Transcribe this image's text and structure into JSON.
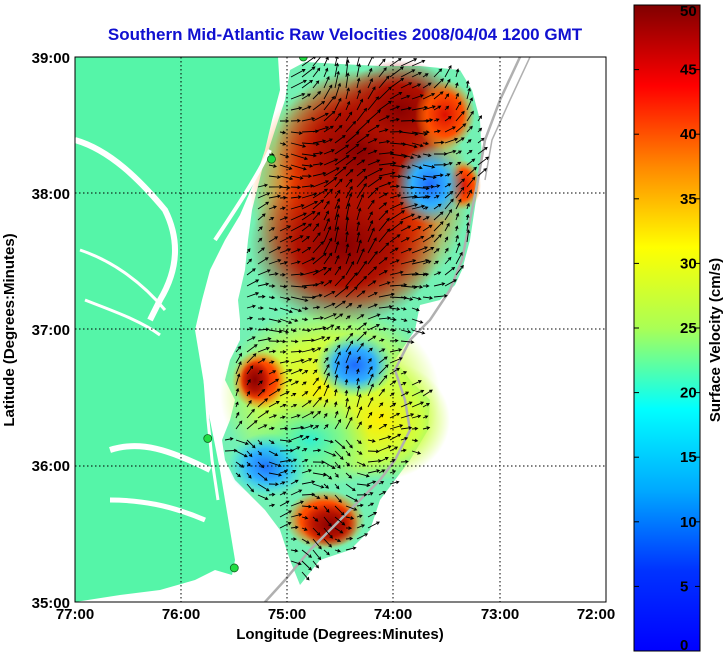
{
  "chart_data": {
    "type": "heatmap",
    "title": "Southern Mid-Atlantic Raw Velocities 2008/04/04 1200 GMT",
    "xlabel": "Longitude (Degrees:Minutes)",
    "ylabel": "Latitude (Degrees:Minutes)",
    "xlim": [
      -77,
      -72
    ],
    "ylim": [
      35,
      39
    ],
    "x_ticks": [
      -77,
      -76,
      -75,
      -74,
      -73,
      -72
    ],
    "x_tick_labels": [
      "77:00",
      "76:00",
      "75:00",
      "74:00",
      "73:00",
      "72:00"
    ],
    "y_ticks": [
      35,
      36,
      37,
      38,
      39
    ],
    "y_tick_labels": [
      "35:00",
      "36:00",
      "37:00",
      "38:00",
      "39:00"
    ],
    "grid": true,
    "colorbar": {
      "label": "Surface Velocity (cm/s)",
      "range": [
        0,
        50
      ],
      "ticks": [
        0,
        5,
        10,
        15,
        20,
        25,
        30,
        35,
        40,
        45,
        50
      ],
      "tick_labels": [
        "0",
        "5",
        "10",
        "15",
        "20",
        "25",
        "30",
        "35",
        "40",
        "45",
        "50"
      ],
      "colormap": "jet"
    },
    "land_color": "#55f5a8",
    "velocity_features": [
      {
        "lon": -74.5,
        "lat": 37.6,
        "speed": 48
      },
      {
        "lon": -74.3,
        "lat": 38.2,
        "speed": 45
      },
      {
        "lon": -74.2,
        "lat": 38.8,
        "speed": 42
      },
      {
        "lon": -73.6,
        "lat": 38.9,
        "speed": 38
      },
      {
        "lon": -73.35,
        "lat": 38.3,
        "speed": 45
      },
      {
        "lon": -73.6,
        "lat": 38.0,
        "speed": 8
      },
      {
        "lon": -74.6,
        "lat": 36.75,
        "speed": 8
      },
      {
        "lon": -75.2,
        "lat": 36.1,
        "speed": 7
      },
      {
        "lon": -75.3,
        "lat": 36.75,
        "speed": 47
      },
      {
        "lon": -74.7,
        "lat": 35.55,
        "speed": 46
      },
      {
        "lon": -74.2,
        "lat": 37.1,
        "speed": 24
      },
      {
        "lon": -73.8,
        "lat": 36.3,
        "speed": 22
      },
      {
        "lon": -74.9,
        "lat": 35.8,
        "speed": 18
      }
    ],
    "stations": [
      {
        "lon": -74.85,
        "lat": 39.0
      },
      {
        "lon": -75.15,
        "lat": 38.25
      },
      {
        "lon": -75.75,
        "lat": 36.2
      },
      {
        "lon": -75.5,
        "lat": 35.25
      }
    ]
  }
}
